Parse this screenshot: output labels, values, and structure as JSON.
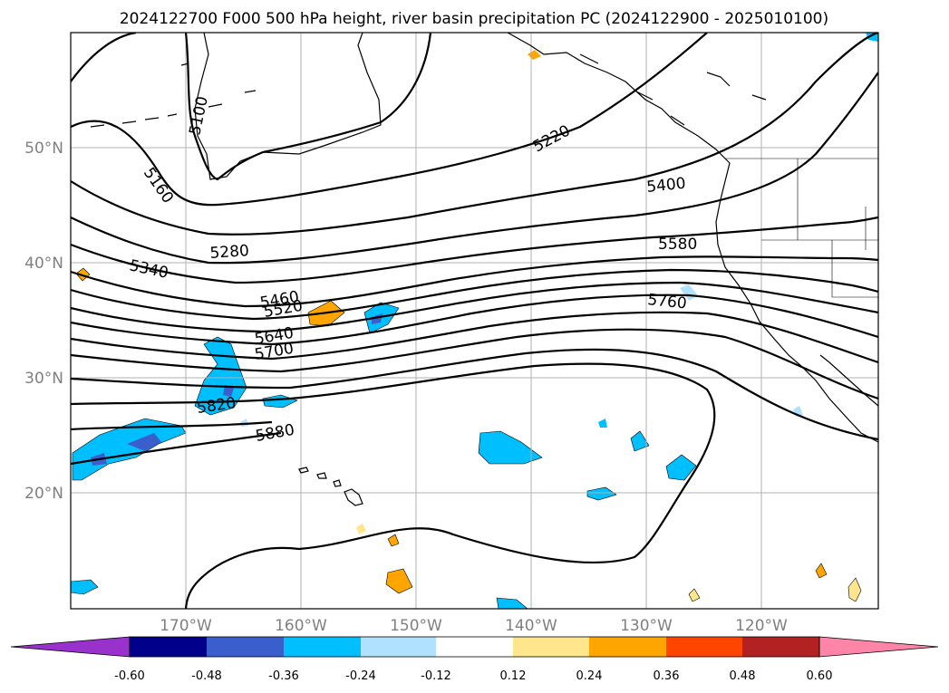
{
  "title": "2024122700 F000 500 hPa height, river basin precipitation PC (2024122900 - 2025010100)",
  "lat_labels": [
    "50°N",
    "40°N",
    "30°N",
    "20°N"
  ],
  "lon_labels": [
    "170°W",
    "160°W",
    "150°W",
    "140°W",
    "130°W",
    "120°W"
  ],
  "contour_labels": [
    "5100",
    "5160",
    "5220",
    "5280",
    "5340",
    "5400",
    "5460",
    "5520",
    "5580",
    "5640",
    "5700",
    "5760",
    "5820",
    "5880"
  ],
  "colorbar": {
    "ticks": [
      "-0.60",
      "-0.48",
      "-0.36",
      "-0.24",
      "-0.12",
      "0.12",
      "0.24",
      "0.36",
      "0.48",
      "0.60"
    ],
    "colors": [
      "#9932cc",
      "#00008b",
      "#3a5fcd",
      "#00bfff",
      "#b0e2ff",
      "#ffffff",
      "#ffe68c",
      "#ffa500",
      "#ff4500",
      "#b22222",
      "#ff85a8"
    ]
  }
}
